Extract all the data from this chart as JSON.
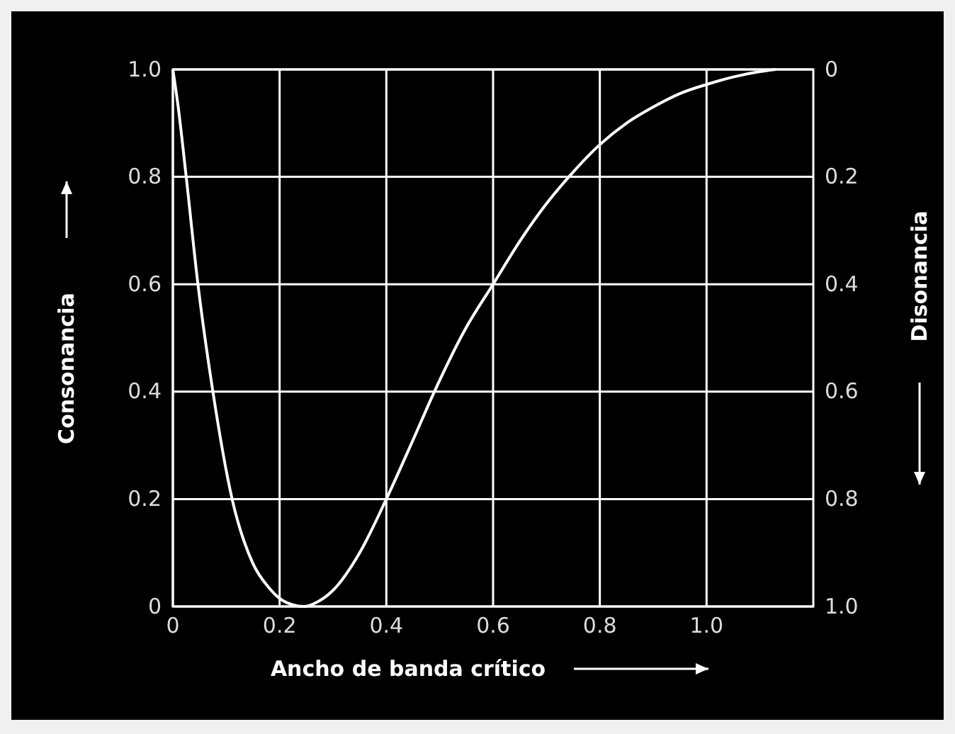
{
  "chart_data": {
    "type": "line",
    "xlabel": "Ancho de banda crítico",
    "ylabel": "Consonancia",
    "y2label": "Disonancia",
    "x": [
      0,
      0.01,
      0.025,
      0.047,
      0.075,
      0.111,
      0.15,
      0.18,
      0.2,
      0.225,
      0.245,
      0.27,
      0.3,
      0.35,
      0.4,
      0.45,
      0.49,
      0.55,
      0.6,
      0.65,
      0.7,
      0.742,
      0.8,
      0.85,
      0.9,
      0.95,
      1.0,
      1.05,
      1.1,
      1.13
    ],
    "series": [
      {
        "color": "#ffffff",
        "values": [
          1,
          0.93,
          0.8,
          0.6,
          0.4,
          0.2,
          0.08,
          0.035,
          0.015,
          0.003,
          0,
          0.008,
          0.03,
          0.1,
          0.2,
          0.31,
          0.4,
          0.52,
          0.6,
          0.68,
          0.75,
          0.8,
          0.86,
          0.9,
          0.93,
          0.955,
          0.972,
          0.986,
          0.996,
          1
        ]
      }
    ],
    "xlim": [
      0,
      1.2
    ],
    "xticks": [
      0,
      0.2,
      0.4,
      0.6,
      0.8,
      {
        "value": 1,
        "label": "1.0"
      }
    ],
    "ylim": [
      0,
      1
    ],
    "yticks": [
      0,
      0.2,
      0.4,
      0.6,
      0.8,
      {
        "value": 1,
        "label": "1.0"
      }
    ],
    "y2lim": [
      1,
      0
    ],
    "y2ticks": [
      0,
      0.2,
      0.4,
      0.6,
      0.8,
      {
        "value": 1,
        "label": "1.0"
      }
    ],
    "grid": true,
    "marker": "none",
    "line_style": "solid"
  }
}
